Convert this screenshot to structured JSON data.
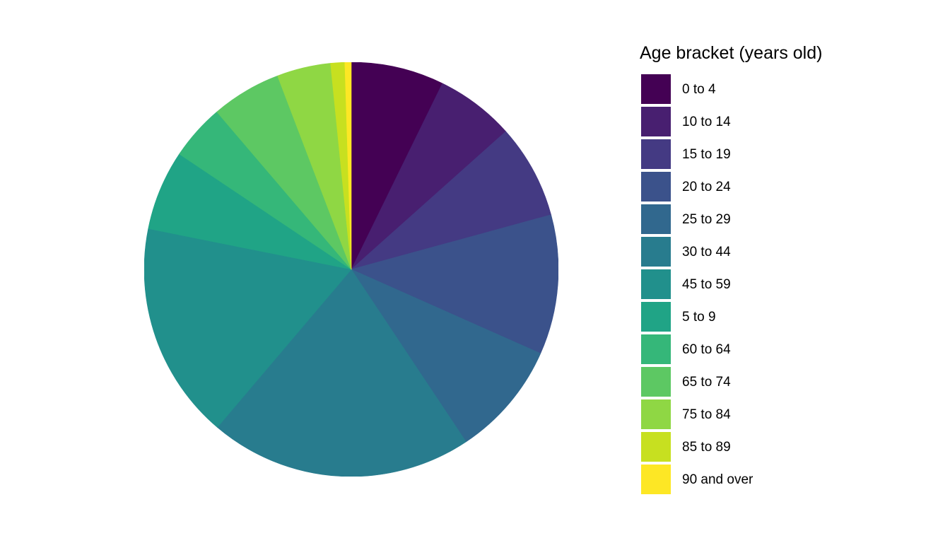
{
  "chart_data": {
    "type": "pie",
    "title": "",
    "legend_title": "Age bracket (years old)",
    "legend_position": "right",
    "start_angle_deg": 0,
    "direction": "clockwise",
    "background": "#FFFFFF",
    "slices": [
      {
        "label": "0 to 4",
        "percent": 7.25,
        "angle_deg": 26.1,
        "color": "#440154"
      },
      {
        "label": "10 to 14",
        "percent": 6.15,
        "angle_deg": 22.1,
        "color": "#481F70"
      },
      {
        "label": "15 to 19",
        "percent": 7.35,
        "angle_deg": 26.5,
        "color": "#443A83"
      },
      {
        "label": "20 to 24",
        "percent": 10.9,
        "angle_deg": 39.3,
        "color": "#3B528B"
      },
      {
        "label": "25 to 29",
        "percent": 9.0,
        "angle_deg": 32.4,
        "color": "#31688E"
      },
      {
        "label": "30 to 44",
        "percent": 20.55,
        "angle_deg": 74.0,
        "color": "#287C8E"
      },
      {
        "label": "45 to 59",
        "percent": 16.95,
        "angle_deg": 61.0,
        "color": "#21908C"
      },
      {
        "label": "5 to 9",
        "percent": 6.25,
        "angle_deg": 22.5,
        "color": "#20A486"
      },
      {
        "label": "60 to 64",
        "percent": 4.35,
        "angle_deg": 15.7,
        "color": "#35B779"
      },
      {
        "label": "65 to 74",
        "percent": 5.45,
        "angle_deg": 19.6,
        "color": "#5DC863"
      },
      {
        "label": "75 to 84",
        "percent": 4.2,
        "angle_deg": 15.1,
        "color": "#8FD744"
      },
      {
        "label": "85 to 89",
        "percent": 1.1,
        "angle_deg": 4.0,
        "color": "#C7E020"
      },
      {
        "label": "90 and over",
        "percent": 0.5,
        "angle_deg": 1.8,
        "color": "#FDE725"
      }
    ]
  }
}
